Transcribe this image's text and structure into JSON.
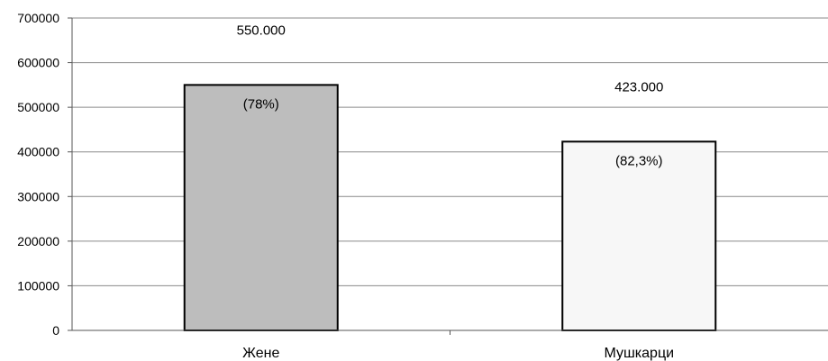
{
  "chart_data": {
    "type": "bar",
    "title": "",
    "xlabel": "",
    "ylabel": "",
    "categories": [
      "Жене",
      "Мушкарци"
    ],
    "values": [
      550000,
      423000
    ],
    "value_labels": [
      "550.000",
      "423.000"
    ],
    "percent_labels": [
      "(78%)",
      "(82,3%)"
    ],
    "bar_colors": [
      "#bdbdbd",
      "#f7f7f7"
    ],
    "ylim": [
      0,
      700000
    ],
    "yticks": [
      0,
      100000,
      200000,
      300000,
      400000,
      500000,
      600000,
      700000
    ],
    "ytick_labels": [
      "0",
      "100000",
      "200000",
      "300000",
      "400000",
      "500000",
      "600000",
      "700000"
    ],
    "grid": true,
    "legend": "none"
  }
}
